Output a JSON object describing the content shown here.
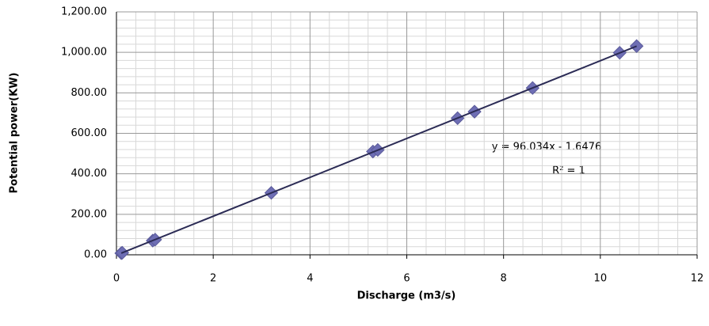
{
  "chart_data": {
    "type": "scatter",
    "x_label": "Discharge (m3/s)",
    "y_label": "Potential power(KW)",
    "annotations": [
      "y = 96.034x - 1.6476",
      "R² = 1"
    ],
    "series": [
      {
        "type": "scatter",
        "color": "#6e6eb4",
        "x": [
          0.1,
          0.12,
          0.75,
          0.8,
          3.2,
          5.3,
          5.4,
          7.05,
          7.4,
          8.6,
          10.4,
          10.75
        ],
        "values": [
          8,
          10,
          70,
          75,
          306,
          510,
          518,
          675,
          707,
          824,
          998,
          1031
        ]
      },
      {
        "type": "line",
        "color": "#2b2b55",
        "x": [
          0.1,
          10.75
        ],
        "values": [
          7.96,
          1030.72
        ]
      }
    ],
    "xlim": [
      0,
      12
    ],
    "xticks": [
      0,
      2,
      4,
      6,
      8,
      10,
      12
    ],
    "ylim": [
      0,
      1200
    ],
    "yticks": [
      {
        "value": 0,
        "label": "0.00"
      },
      {
        "value": 200,
        "label": "200.00"
      },
      {
        "value": 400,
        "label": "400.00"
      },
      {
        "value": 600,
        "label": "600.00"
      },
      {
        "value": 800,
        "label": "800.00"
      },
      {
        "value": 1000,
        "label": "1,000.00"
      },
      {
        "value": 1200,
        "label": "1,200.00"
      }
    ],
    "grid": true
  }
}
